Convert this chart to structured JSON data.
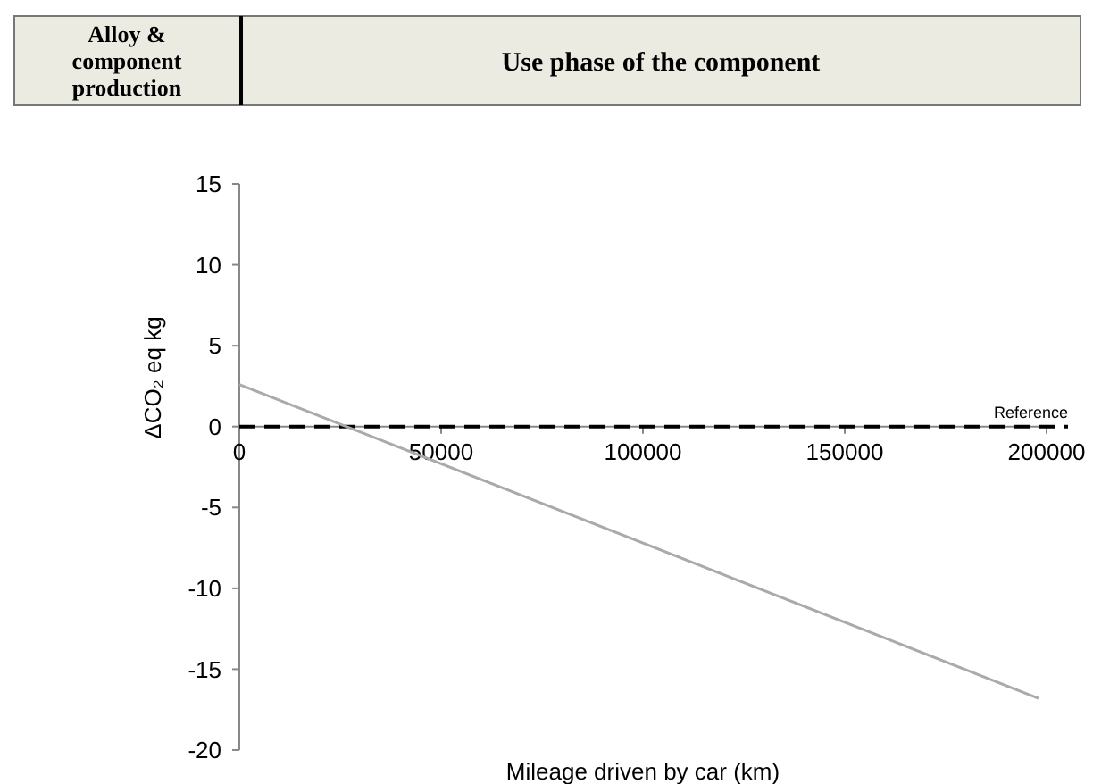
{
  "chart_data": {
    "type": "line",
    "xlabel": "Mileage driven by car (km)",
    "ylabel": "ΔCO₂ eq  kg",
    "annotations": [
      "Alloy & component production",
      "Use phase of the component"
    ],
    "x": [
      0,
      198000
    ],
    "series": [
      {
        "color": "#aaaaaa",
        "values": [
          2.6,
          -16.8
        ]
      }
    ],
    "xlim": [
      0,
      200000
    ],
    "xticks": [
      0,
      50000,
      100000,
      150000,
      200000
    ],
    "ylim": [
      -20,
      15
    ],
    "yticks": [
      -20,
      -15,
      -10,
      -5,
      0,
      5,
      10,
      15
    ],
    "ref_lines": [
      {
        "axis": "y",
        "value": 0,
        "label": "Reference",
        "color": "#000000",
        "line_style": "dashed"
      }
    ],
    "grid": false,
    "marker": "none",
    "line_style": "solid"
  }
}
